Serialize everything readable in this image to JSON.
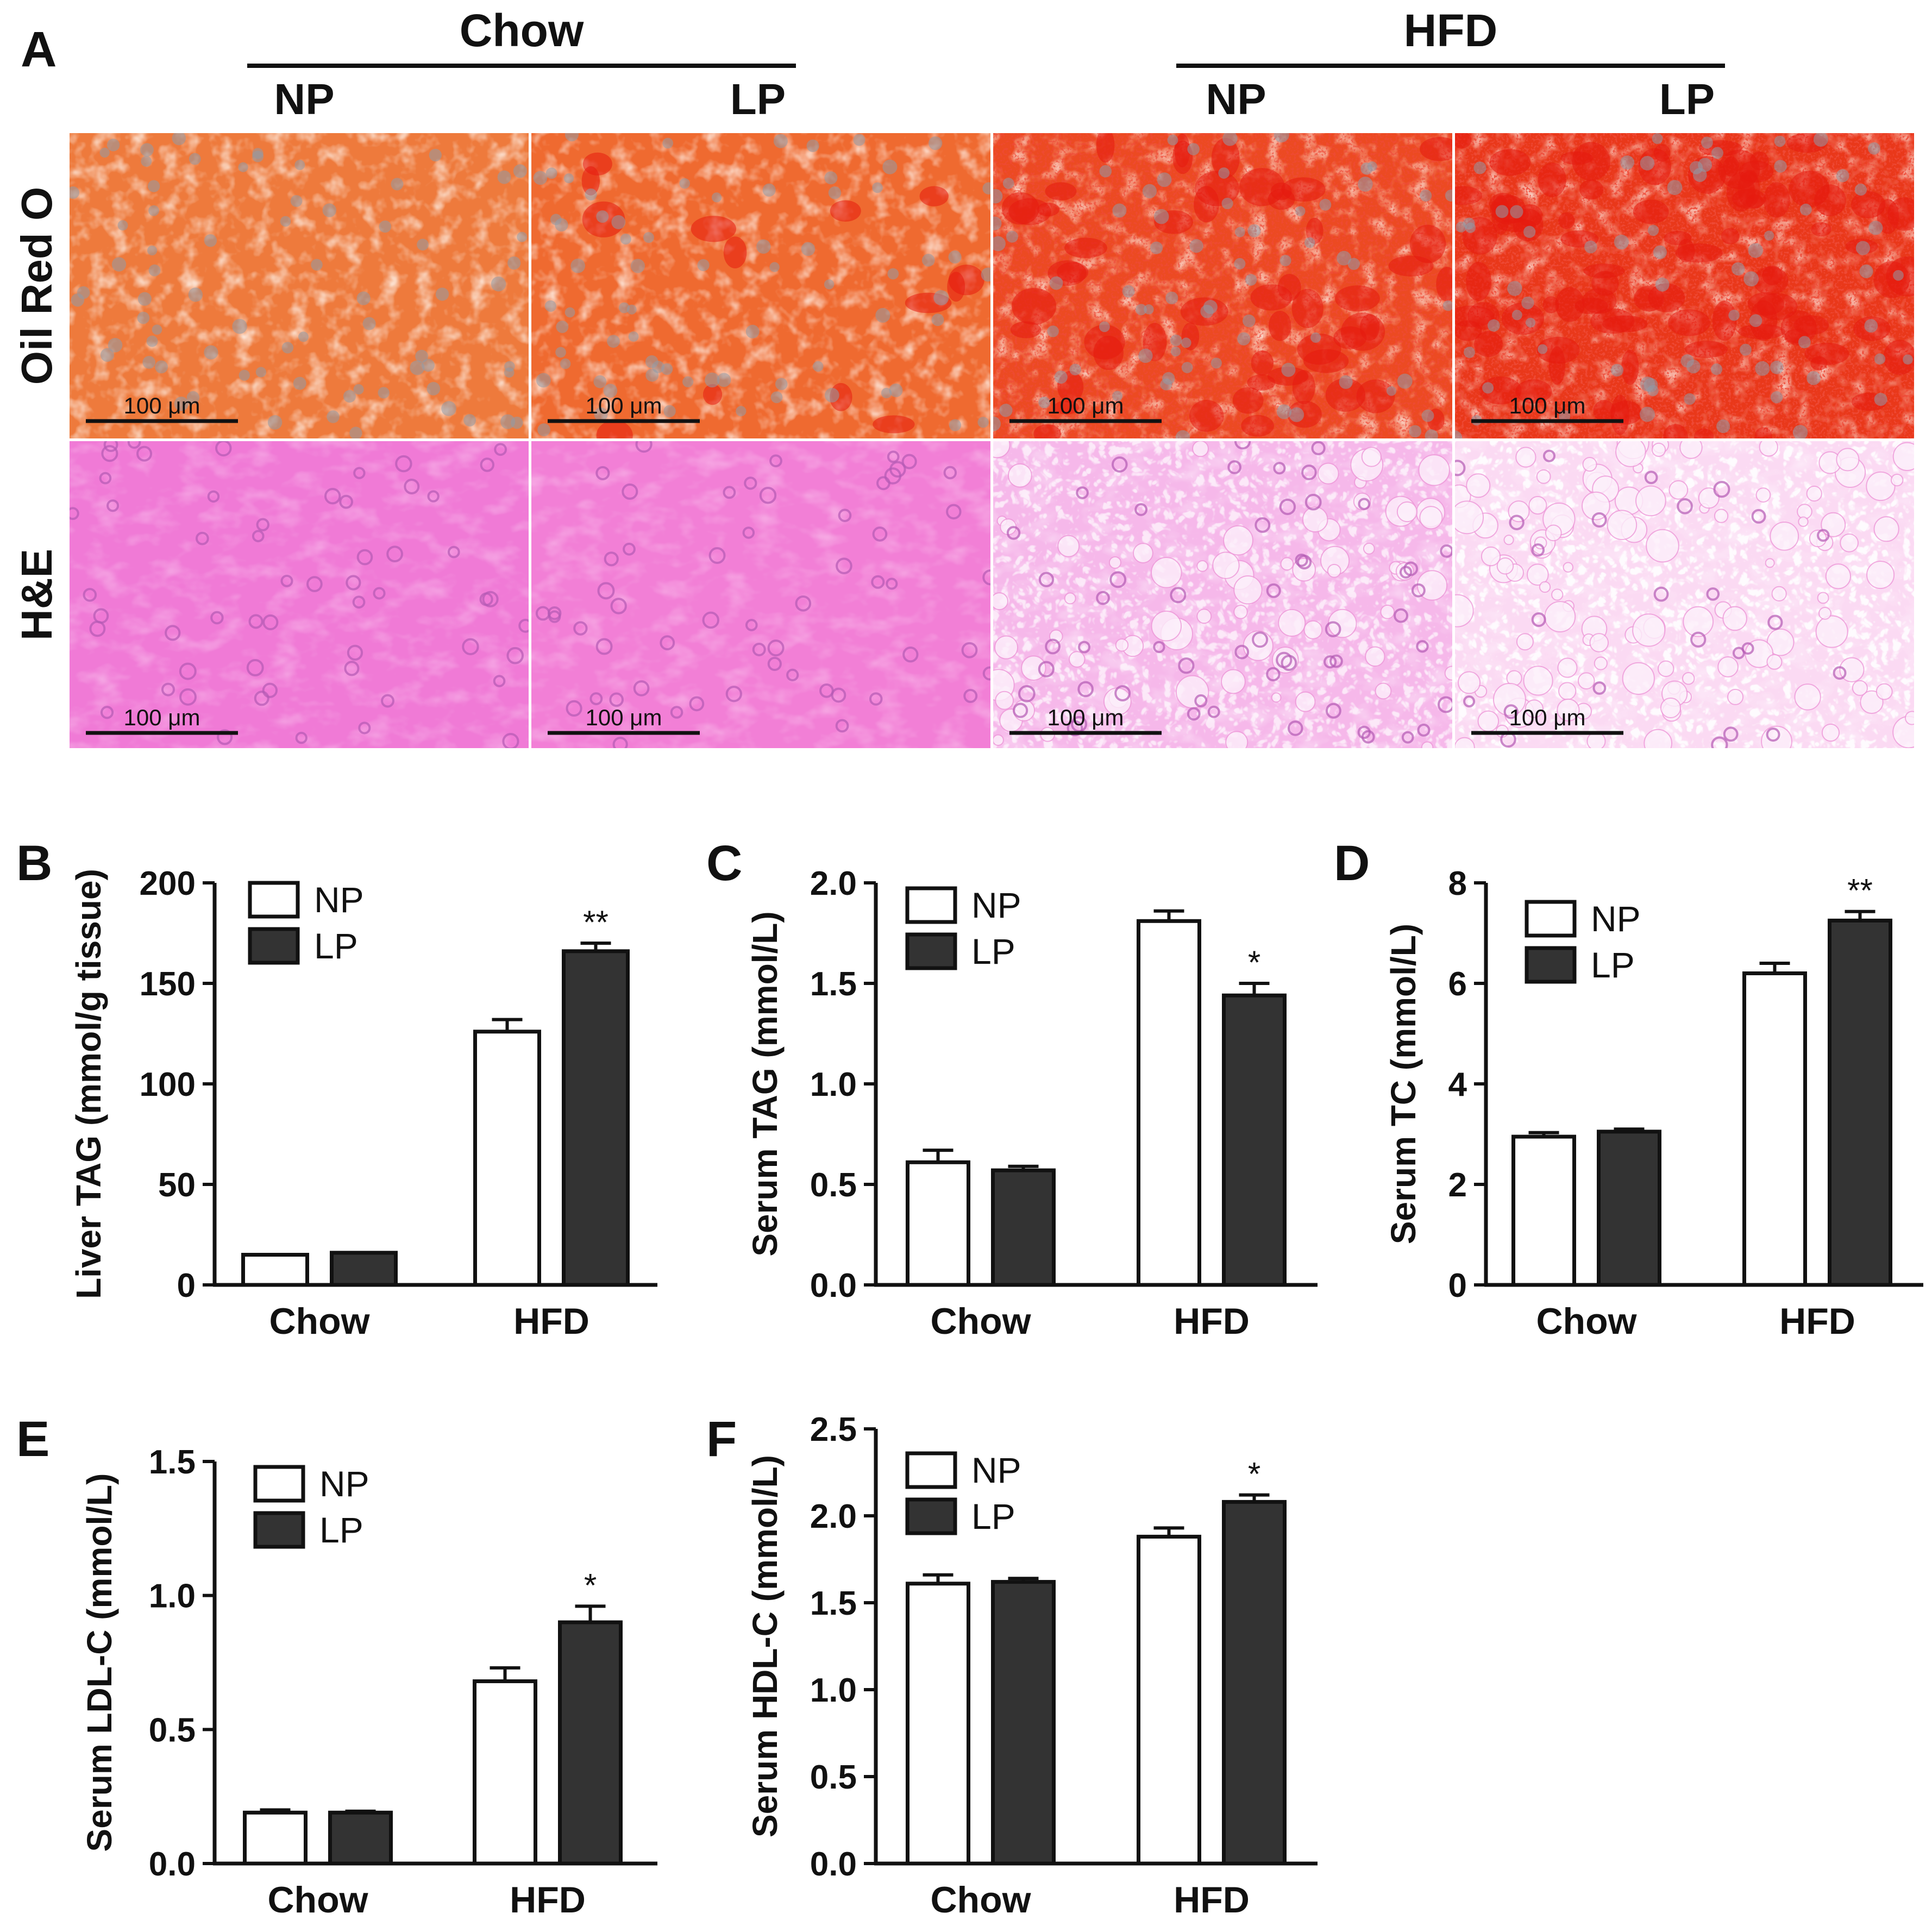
{
  "panel_a": {
    "letter": "A",
    "groups": [
      {
        "label": "Chow",
        "subgroups": [
          "NP",
          "LP"
        ]
      },
      {
        "label": "HFD",
        "subgroups": [
          "NP",
          "LP"
        ]
      }
    ],
    "rows": [
      "Oil Red O",
      "H&E"
    ],
    "scale_bar_label": "100 μm",
    "colors": {
      "oil_low": "#ee7a3c",
      "oil_high": "#ec3a1a",
      "oil_nuclei": "#8f9aa8",
      "he_base": "#f07ad6",
      "he_light": "#f9d8f0",
      "he_nuclei": "#b45ab4"
    }
  },
  "legend": {
    "np_label": "NP",
    "lp_label": "LP"
  },
  "colors": {
    "np_fill": "#ffffff",
    "lp_fill": "#333333",
    "axis": "#111111"
  },
  "chart_data": [
    {
      "letter": "B",
      "type": "bar",
      "title": "",
      "categories": [
        "Chow",
        "HFD"
      ],
      "series": [
        {
          "name": "NP",
          "values": [
            15,
            126
          ],
          "errors": [
            0,
            6
          ]
        },
        {
          "name": "LP",
          "values": [
            16,
            166
          ],
          "errors": [
            0,
            4
          ]
        }
      ],
      "ylabel": "Liver TAG (mmol/g tissue)",
      "xlabel": "",
      "ylim": [
        0,
        200
      ],
      "yticks": [
        "0",
        "50",
        "100",
        "150",
        "200"
      ],
      "significance": [
        "",
        "**"
      ]
    },
    {
      "letter": "C",
      "type": "bar",
      "title": "",
      "categories": [
        "Chow",
        "HFD"
      ],
      "series": [
        {
          "name": "NP",
          "values": [
            0.61,
            1.81
          ],
          "errors": [
            0.06,
            0.05
          ]
        },
        {
          "name": "LP",
          "values": [
            0.57,
            1.44
          ],
          "errors": [
            0.02,
            0.06
          ]
        }
      ],
      "ylabel": "Serum TAG (mmol/L)",
      "xlabel": "",
      "ylim": [
        0,
        2.0
      ],
      "yticks": [
        "0.0",
        "0.5",
        "1.0",
        "1.5",
        "2.0"
      ],
      "significance": [
        "",
        "*"
      ]
    },
    {
      "letter": "D",
      "type": "bar",
      "title": "",
      "categories": [
        "Chow",
        "HFD"
      ],
      "series": [
        {
          "name": "NP",
          "values": [
            2.95,
            6.2
          ],
          "errors": [
            0.08,
            0.2
          ]
        },
        {
          "name": "LP",
          "values": [
            3.05,
            7.25
          ],
          "errors": [
            0.05,
            0.18
          ]
        }
      ],
      "ylabel": "Serum TC (mmol/L)",
      "xlabel": "",
      "ylim": [
        0,
        8
      ],
      "yticks": [
        "0",
        "2",
        "4",
        "6",
        "8"
      ],
      "significance": [
        "",
        "**"
      ]
    },
    {
      "letter": "E",
      "type": "bar",
      "title": "",
      "categories": [
        "Chow",
        "HFD"
      ],
      "series": [
        {
          "name": "NP",
          "values": [
            0.19,
            0.68
          ],
          "errors": [
            0.01,
            0.05
          ]
        },
        {
          "name": "LP",
          "values": [
            0.19,
            0.9
          ],
          "errors": [
            0.005,
            0.06
          ]
        }
      ],
      "ylabel": "Serum LDL-C (mmol/L)",
      "xlabel": "",
      "ylim": [
        0,
        1.5
      ],
      "yticks": [
        "0.0",
        "0.5",
        "1.0",
        "1.5"
      ],
      "significance": [
        "",
        "*"
      ]
    },
    {
      "letter": "F",
      "type": "bar",
      "title": "",
      "categories": [
        "Chow",
        "HFD"
      ],
      "series": [
        {
          "name": "NP",
          "values": [
            1.61,
            1.88
          ],
          "errors": [
            0.05,
            0.05
          ]
        },
        {
          "name": "LP",
          "values": [
            1.62,
            2.08
          ],
          "errors": [
            0.02,
            0.04
          ]
        }
      ],
      "ylabel": "Serum HDL-C (mmol/L)",
      "xlabel": "",
      "ylim": [
        0,
        2.5
      ],
      "yticks": [
        "0.0",
        "0.5",
        "1.0",
        "1.5",
        "2.0",
        "2.5"
      ],
      "significance": [
        "",
        "*"
      ]
    }
  ]
}
